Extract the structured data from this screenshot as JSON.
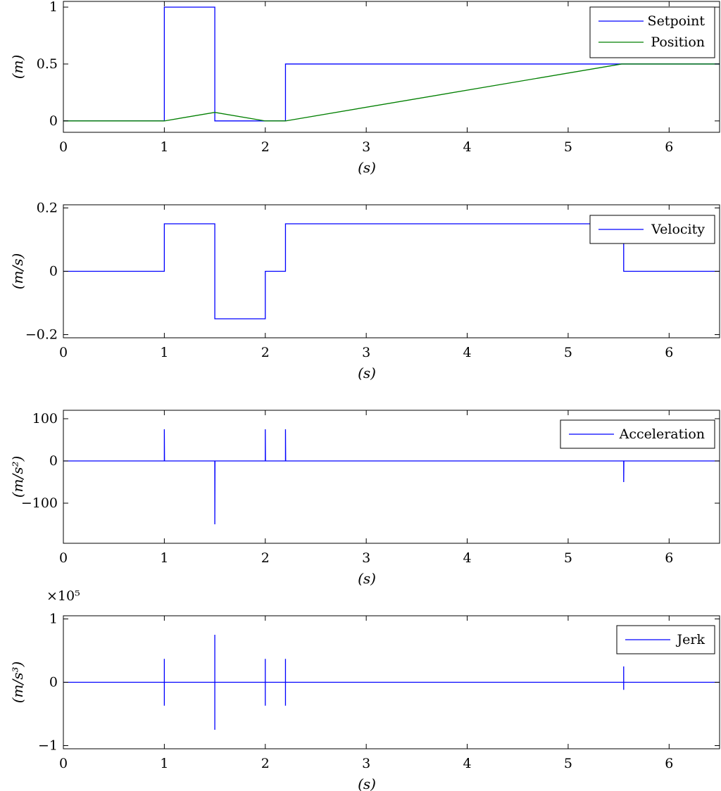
{
  "chart_data": [
    {
      "type": "line",
      "xlabel": "(s)",
      "ylabel": "(m)",
      "xlim": [
        0,
        6.5
      ],
      "ylim": [
        -0.1,
        1.05
      ],
      "xticks": [
        0,
        1,
        2,
        3,
        4,
        5,
        6
      ],
      "xtick_labels": [
        "0",
        "1",
        "2",
        "3",
        "4",
        "5",
        "6"
      ],
      "yticks": [
        0,
        0.5,
        1
      ],
      "ytick_labels": [
        "0",
        "0.5",
        "1"
      ],
      "legend_placement": "top-right",
      "series": [
        {
          "name": "Setpoint",
          "color": "#0000ff",
          "x": [
            0,
            1,
            1,
            1.5,
            1.5,
            2.2,
            2.2,
            6.5
          ],
          "y": [
            0,
            0,
            1,
            1,
            0,
            0,
            0.5,
            0.5
          ]
        },
        {
          "name": "Position",
          "color": "#007f00",
          "x": [
            0,
            1,
            1.5,
            2,
            2.2,
            5.53,
            6.5
          ],
          "y": [
            0,
            0,
            0.075,
            0,
            0,
            0.5,
            0.5
          ]
        }
      ]
    },
    {
      "type": "line",
      "xlabel": "(s)",
      "ylabel": "(m/s)",
      "xlim": [
        0,
        6.5
      ],
      "ylim": [
        -0.21,
        0.21
      ],
      "xticks": [
        0,
        1,
        2,
        3,
        4,
        5,
        6
      ],
      "xtick_labels": [
        "0",
        "1",
        "2",
        "3",
        "4",
        "5",
        "6"
      ],
      "yticks": [
        -0.2,
        0,
        0.2
      ],
      "ytick_labels": [
        "−0.2",
        "0",
        "0.2"
      ],
      "legend_placement": "top-right",
      "series": [
        {
          "name": "Velocity",
          "color": "#0000ff",
          "x": [
            0,
            1,
            1,
            1.5,
            1.5,
            2,
            2,
            2.2,
            2.2,
            5.55,
            5.55,
            6.5
          ],
          "y": [
            0,
            0,
            0.15,
            0.15,
            -0.15,
            -0.15,
            0,
            0,
            0.15,
            0.15,
            0,
            0
          ]
        }
      ]
    },
    {
      "type": "line",
      "xlabel": "(s)",
      "ylabel": "(m/s²)",
      "xlim": [
        0,
        6.5
      ],
      "ylim": [
        -195,
        120
      ],
      "xticks": [
        0,
        1,
        2,
        3,
        4,
        5,
        6
      ],
      "xtick_labels": [
        "0",
        "1",
        "2",
        "3",
        "4",
        "5",
        "6"
      ],
      "yticks": [
        -100,
        0,
        100
      ],
      "ytick_labels": [
        "−100",
        "0",
        "100"
      ],
      "legend_placement": "top-right",
      "series": [
        {
          "name": "Acceleration",
          "color": "#0000ff",
          "x": [
            0,
            1,
            1,
            1.002,
            1.5,
            1.5,
            1.502,
            2,
            2,
            2.002,
            2.2,
            2.2,
            2.202,
            5.55,
            5.55,
            5.552,
            6.5
          ],
          "y": [
            0,
            0,
            75,
            0,
            0,
            -150,
            0,
            0,
            75,
            0,
            0,
            75,
            0,
            0,
            -50,
            0,
            0
          ]
        }
      ]
    },
    {
      "type": "line",
      "xlabel": "(s)",
      "ylabel": "(m/s³)",
      "exponent_label": "×10⁵",
      "xlim": [
        0,
        6.5
      ],
      "ylim": [
        -1.05,
        1.05
      ],
      "xticks": [
        0,
        1,
        2,
        3,
        4,
        5,
        6
      ],
      "xtick_labels": [
        "0",
        "1",
        "2",
        "3",
        "4",
        "5",
        "6"
      ],
      "yticks": [
        -1,
        0,
        1
      ],
      "ytick_labels": [
        "−1",
        "0",
        "1"
      ],
      "legend_placement": "top-right",
      "series": [
        {
          "name": "Jerk",
          "color": "#0000ff",
          "x": [
            0,
            1,
            1,
            1,
            1,
            1.5,
            1.5,
            1.5,
            1.5,
            2,
            2,
            2,
            2,
            2.2,
            2.2,
            2.2,
            2.2,
            5.55,
            5.55,
            5.55,
            5.55,
            6.5
          ],
          "y": [
            0,
            0,
            0.37,
            -0.37,
            0,
            0,
            0.75,
            -0.75,
            0,
            0,
            0.37,
            -0.37,
            0,
            0,
            0.37,
            -0.37,
            0,
            0,
            0.25,
            -0.12,
            0,
            0
          ]
        }
      ]
    }
  ]
}
